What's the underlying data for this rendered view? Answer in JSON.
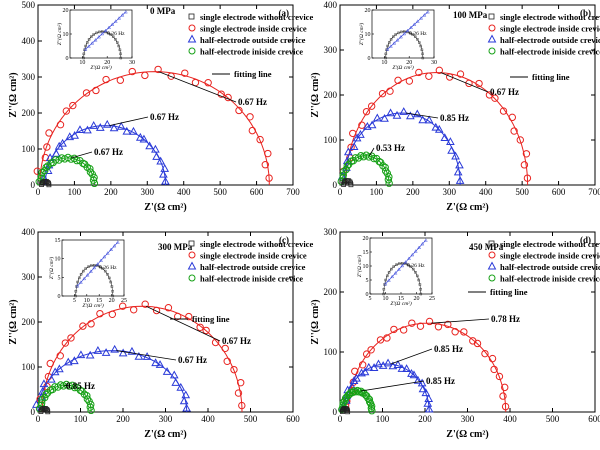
{
  "colors": {
    "without": "#222222",
    "inside": "#e8231f",
    "outside": "#2a3ad8",
    "half_inside": "#17a117",
    "fit_inside": "#e8231f",
    "fit_outside": "#2a3ad8"
  },
  "legend_labels": [
    "single electrode without crevice",
    "single electrode inside crevice",
    "half-electrode outside crevice",
    "half-electrode iniside crevice",
    "fitting line"
  ],
  "chart_data": [
    {
      "type": "scatter",
      "panel_label": "(a)",
      "pressure": "0 MPa",
      "xlabel": "Z'(Ω cm²)",
      "ylabel": "Z''(Ω cm²)",
      "xlim": [
        0,
        700
      ],
      "ylim": [
        0,
        500
      ],
      "xticks": [
        0,
        100,
        200,
        300,
        400,
        500,
        600,
        700
      ],
      "yticks": [
        0,
        100,
        200,
        300,
        400,
        500
      ],
      "annotations": [
        "0.67 Hz",
        "0.67 Hz",
        "0.67 Hz"
      ],
      "series": [
        {
          "key": "inside",
          "cx": 320,
          "r": 315,
          "x0": 5,
          "xend": 625,
          "peak_label": "0.67 Hz"
        },
        {
          "key": "outside",
          "cx": 185,
          "r": 165,
          "x0": 15,
          "xend": 355,
          "peak_label": "0.67 Hz"
        },
        {
          "key": "half_inside",
          "cx": 80,
          "r": 75,
          "x0": 5,
          "xend": 155,
          "peak_label": "0.67 Hz"
        },
        {
          "key": "without",
          "cx": 20,
          "r": 10,
          "x0": 10,
          "xend": 30
        }
      ],
      "inset": {
        "xlim": [
          5,
          30
        ],
        "ylim": [
          0,
          20
        ],
        "xticks": [
          10,
          20,
          30
        ],
        "yticks": [
          0,
          10,
          20
        ],
        "label": "0.26 Hz",
        "xlabel": "Z'(Ω cm²)",
        "ylabel": "Z''(Ω cm²)"
      }
    },
    {
      "type": "scatter",
      "panel_label": "(b)",
      "pressure": "100 MPa",
      "xlabel": "Z'(Ω cm²)",
      "ylabel": "Z''(Ω cm²)",
      "xlim": [
        0,
        700
      ],
      "ylim": [
        0,
        400
      ],
      "xticks": [
        0,
        100,
        200,
        300,
        400,
        500,
        600,
        700
      ],
      "yticks": [
        0,
        100,
        200,
        300,
        400
      ],
      "annotations": [
        "0.67 Hz",
        "0.85 Hz",
        "0.53 Hz"
      ],
      "series": [
        {
          "key": "inside",
          "cx": 265,
          "r": 250,
          "x0": 15,
          "xend": 515,
          "peak_label": "0.67 Hz"
        },
        {
          "key": "outside",
          "cx": 170,
          "r": 160,
          "x0": 10,
          "xend": 330,
          "peak_label": "0.85 Hz"
        },
        {
          "key": "half_inside",
          "cx": 70,
          "r": 65,
          "x0": 5,
          "xend": 135,
          "peak_label": "0.53 Hz"
        },
        {
          "key": "without",
          "cx": 20,
          "r": 10,
          "x0": 10,
          "xend": 30
        }
      ],
      "inset": {
        "xlim": [
          5,
          30
        ],
        "ylim": [
          0,
          20
        ],
        "xticks": [
          10,
          20,
          30
        ],
        "yticks": [
          0,
          10,
          20
        ],
        "label": "0.26 Hz",
        "xlabel": "Z'(Ω cm²)",
        "ylabel": "Z''(Ω cm²)"
      }
    },
    {
      "type": "scatter",
      "panel_label": "(c)",
      "pressure": "300 MPa",
      "xlabel": "Z'(Ω cm²)",
      "ylabel": "Z''(Ω cm²)",
      "xlim": [
        0,
        600
      ],
      "ylim": [
        0,
        400
      ],
      "xticks": [
        0,
        100,
        200,
        300,
        400,
        500,
        600
      ],
      "yticks": [
        0,
        100,
        200,
        300,
        400
      ],
      "annotations": [
        "0.67 Hz",
        "0.67 Hz",
        "0.85 Hz"
      ],
      "series": [
        {
          "key": "inside",
          "cx": 245,
          "r": 235,
          "x0": 10,
          "xend": 490,
          "peak_label": "0.67 Hz"
        },
        {
          "key": "outside",
          "cx": 175,
          "r": 175,
          "x0": 5,
          "xend": 350,
          "peak_label": "0.67 Hz",
          "scale": 0.78
        },
        {
          "key": "half_inside",
          "cx": 65,
          "r": 60,
          "x0": 5,
          "xend": 125,
          "peak_label": "0.85 Hz"
        },
        {
          "key": "without",
          "cx": 15,
          "r": 8,
          "x0": 7,
          "xend": 23
        }
      ],
      "inset": {
        "xlim": [
          0,
          25
        ],
        "ylim": [
          0,
          15
        ],
        "xticks": [
          5,
          10,
          15,
          20,
          25
        ],
        "yticks": [
          0,
          5,
          10,
          15
        ],
        "label": "0.26 Hz",
        "xlabel": "Z'(Ω cm²)",
        "ylabel": "Z''(Ω cm²)"
      }
    },
    {
      "type": "scatter",
      "panel_label": "(d)",
      "pressure": "450 MPa",
      "xlabel": "Z'(Ω cm²)",
      "ylabel": "Z''(Ω cm²)",
      "xlim": [
        0,
        600
      ],
      "ylim": [
        0,
        300
      ],
      "xticks": [
        0,
        100,
        200,
        300,
        400,
        500,
        600
      ],
      "yticks": [
        0,
        100,
        200,
        300
      ],
      "annotations": [
        "0.78 Hz",
        "0.85 Hz",
        "0.85 Hz"
      ],
      "series": [
        {
          "key": "inside",
          "cx": 205,
          "r": 185,
          "x0": 20,
          "xend": 390,
          "peak_label": "0.78 Hz",
          "scale": 0.8
        },
        {
          "key": "outside",
          "cx": 110,
          "r": 100,
          "x0": 10,
          "xend": 210,
          "peak_label": "0.85 Hz",
          "scale": 0.8
        },
        {
          "key": "half_inside",
          "cx": 40,
          "r": 35,
          "x0": 5,
          "xend": 75,
          "peak_label": "0.85 Hz"
        },
        {
          "key": "without",
          "cx": 12,
          "r": 6,
          "x0": 6,
          "xend": 18
        }
      ],
      "inset": {
        "xlim": [
          5,
          25
        ],
        "ylim": [
          0,
          20
        ],
        "xticks": [
          5,
          10,
          15,
          20,
          25
        ],
        "yticks": [
          0,
          5,
          10,
          15,
          20
        ],
        "label": "0.26 Hz",
        "xlabel": "Z'(Ω cm²)",
        "ylabel": "Z''(Ω cm²)"
      }
    }
  ]
}
